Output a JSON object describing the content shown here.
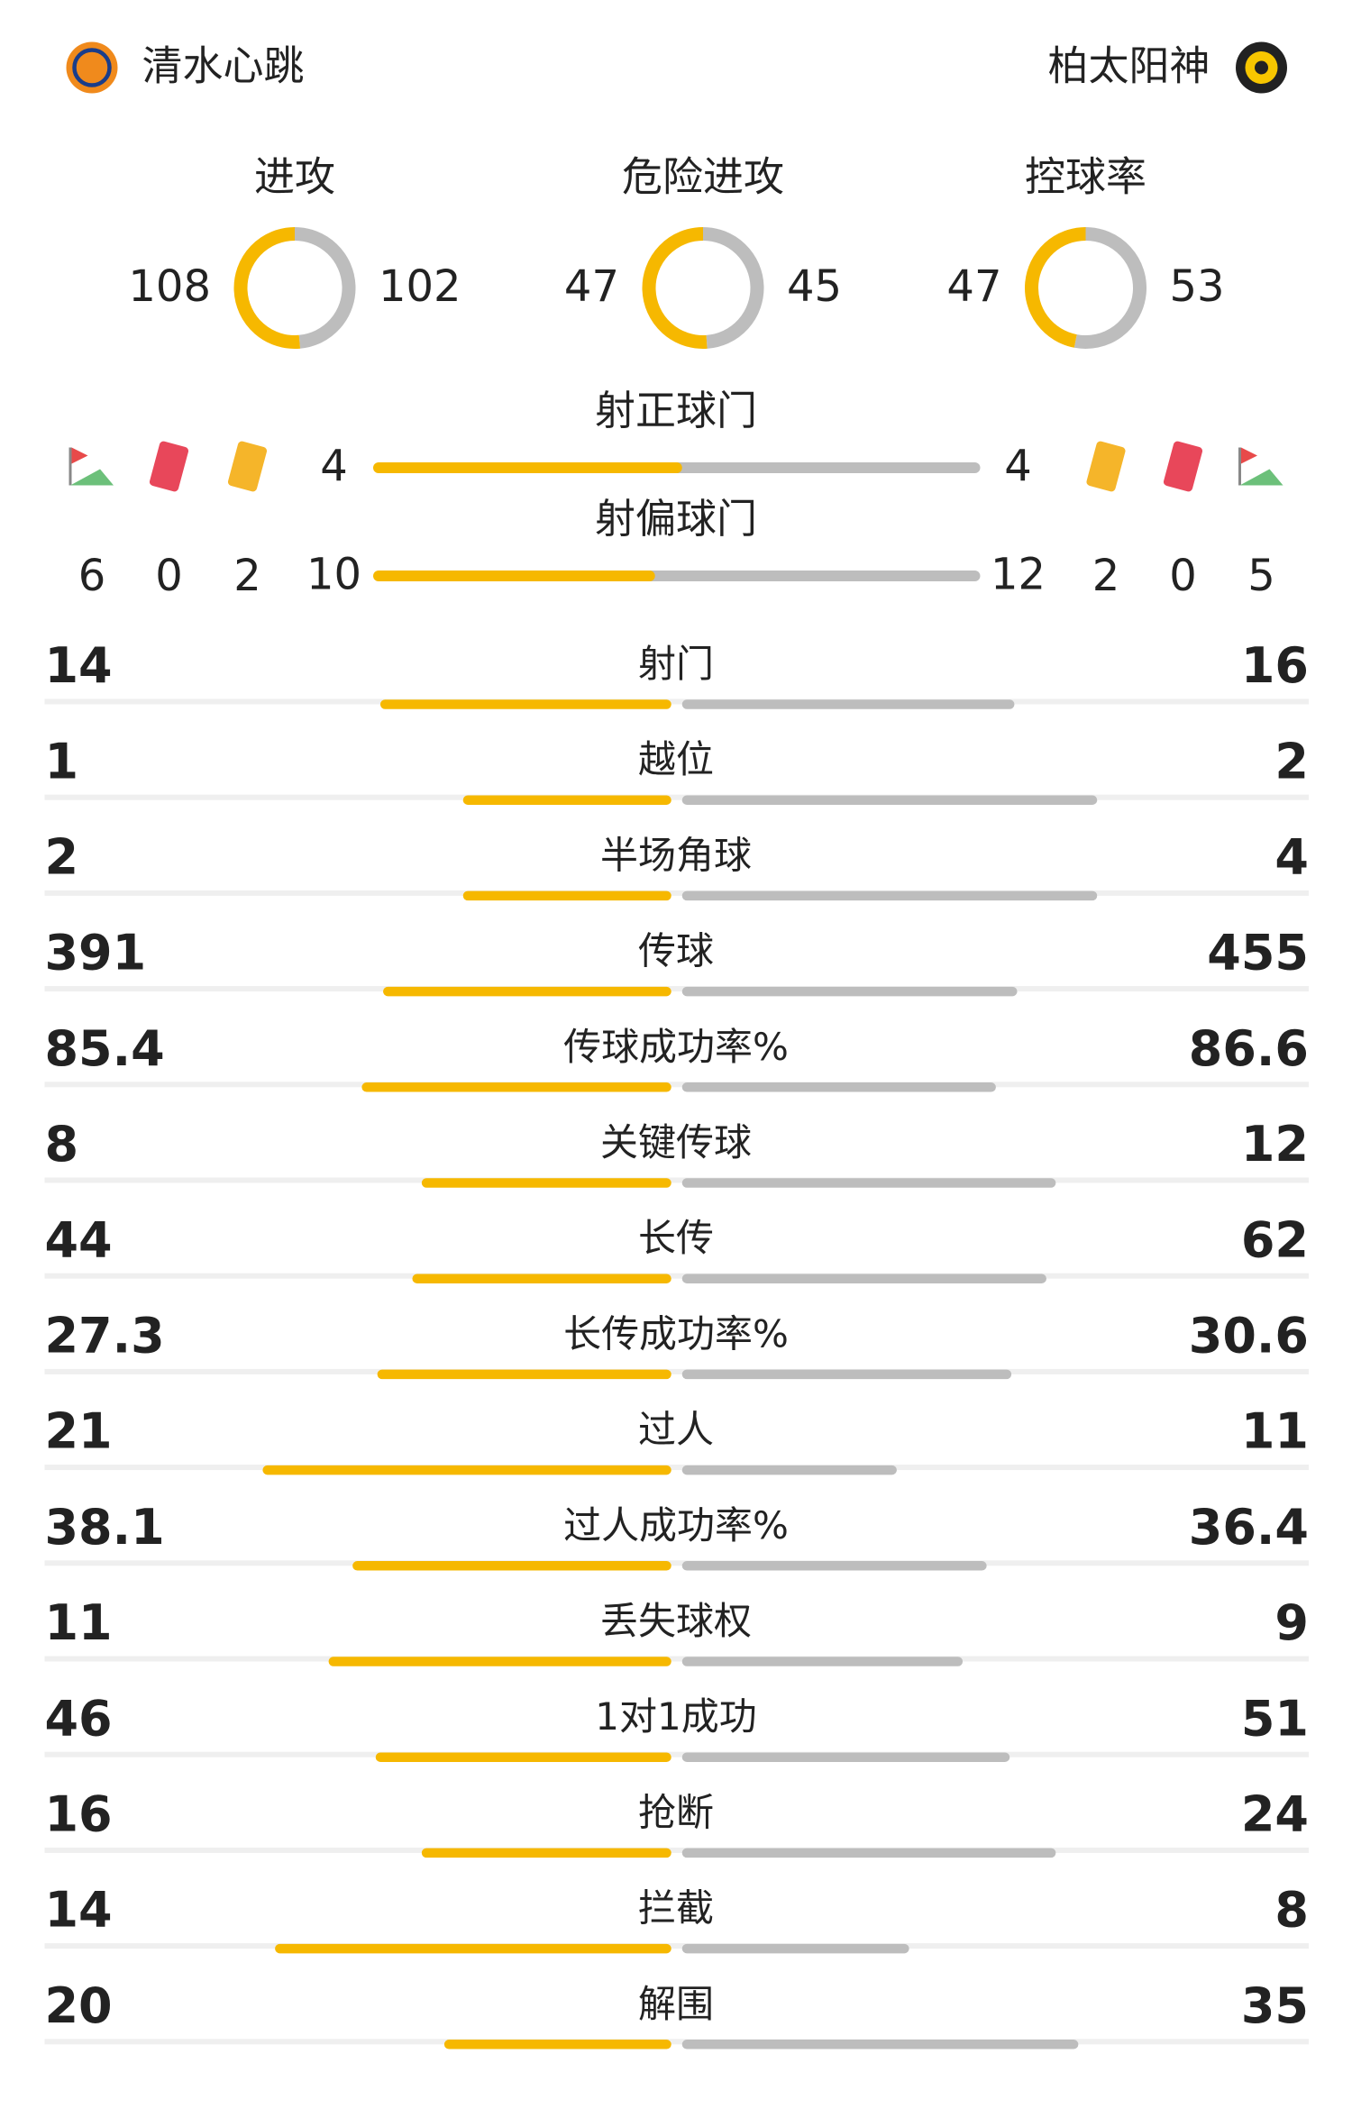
{
  "home_team": "清水心跳",
  "away_team": "柏太阳神",
  "summary": [
    {
      "label": "进攻",
      "home": 108,
      "away": 102
    },
    {
      "label": "危险进攻",
      "home": 47,
      "away": 45
    },
    {
      "label": "控球率",
      "home": 47,
      "away": 53
    }
  ],
  "discipline": {
    "home": {
      "corners": 6,
      "red_cards": 0,
      "yellow_cards": 2
    },
    "away": {
      "corners": 5,
      "red_cards": 0,
      "yellow_cards": 2
    }
  },
  "shots_target": [
    {
      "label": "射正球门",
      "home": 4,
      "away": 4
    },
    {
      "label": "射偏球门",
      "home": 10,
      "away": 12
    }
  ],
  "stats": [
    {
      "label": "射门",
      "home": 14,
      "away": 16
    },
    {
      "label": "越位",
      "home": 1,
      "away": 2
    },
    {
      "label": "半场角球",
      "home": 2,
      "away": 4
    },
    {
      "label": "传球",
      "home": 391,
      "away": 455
    },
    {
      "label": "传球成功率%",
      "home": 85.4,
      "away": 86.6
    },
    {
      "label": "关键传球",
      "home": 8,
      "away": 12
    },
    {
      "label": "长传",
      "home": 44,
      "away": 62
    },
    {
      "label": "长传成功率%",
      "home": 27.3,
      "away": 30.6
    },
    {
      "label": "过人",
      "home": 21,
      "away": 11
    },
    {
      "label": "过人成功率%",
      "home": 38.1,
      "away": 36.4
    },
    {
      "label": "丢失球权",
      "home": 11,
      "away": 9
    },
    {
      "label": "1对1成功",
      "home": 46,
      "away": 51
    },
    {
      "label": "抢断",
      "home": 16,
      "away": 24
    },
    {
      "label": "拦截",
      "home": 14,
      "away": 8
    },
    {
      "label": "解围",
      "home": 20,
      "away": 35
    }
  ]
}
